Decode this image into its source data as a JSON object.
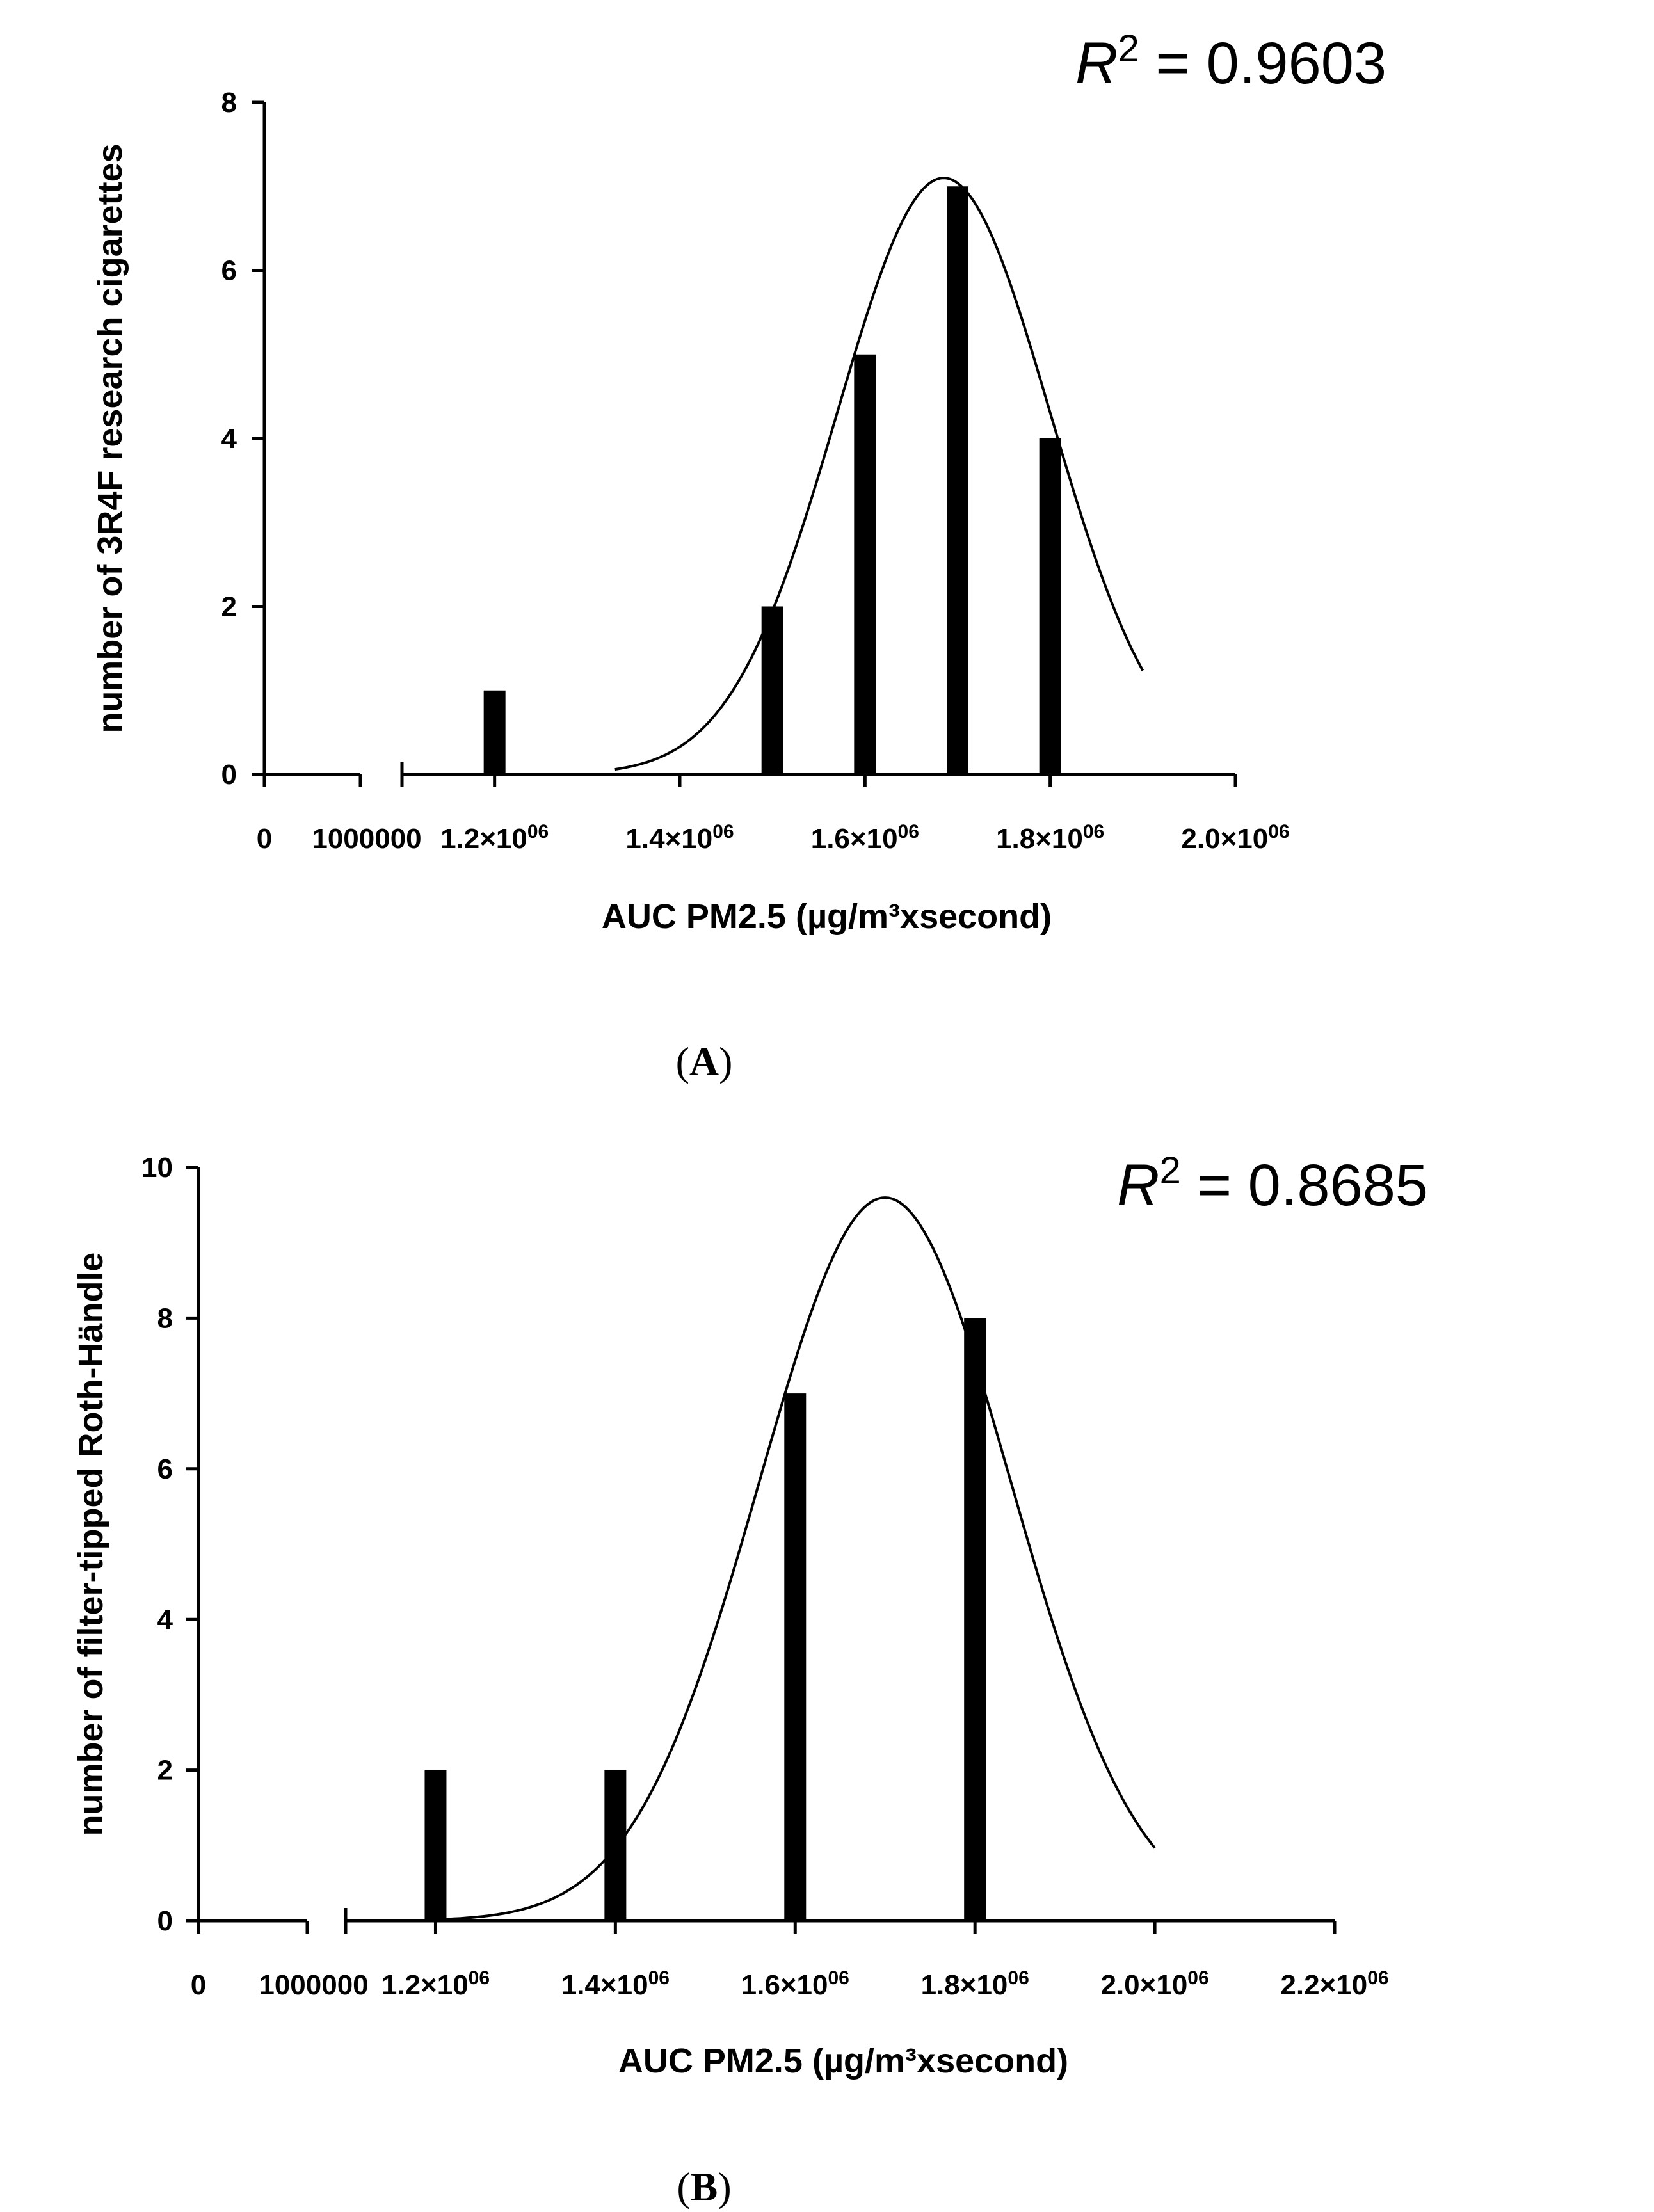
{
  "chart_data": [
    {
      "type": "bar",
      "panel_label": "A",
      "ylabel": "number of 3R4F research cigarettes",
      "xlabel": "AUC PM2.5 (µg/m³xsecond)",
      "r2_label": "R",
      "r2_exp": "2",
      "r2_value": " = 0.9603",
      "ylim": [
        0,
        8
      ],
      "y_ticks": [
        "0",
        "2",
        "4",
        "6",
        "8"
      ],
      "x_break_ticks": [
        "0",
        "1000000"
      ],
      "xlim_main": [
        1100000,
        2000000
      ],
      "x_ticks": [
        {
          "value": 1200000,
          "mantissa": "1.2×10",
          "exp": "06"
        },
        {
          "value": 1400000,
          "mantissa": "1.4×10",
          "exp": "06"
        },
        {
          "value": 1600000,
          "mantissa": "1.6×10",
          "exp": "06"
        },
        {
          "value": 1800000,
          "mantissa": "1.8×10",
          "exp": "06"
        },
        {
          "value": 2000000,
          "mantissa": "2.0×10",
          "exp": "06"
        }
      ],
      "bars": [
        {
          "x": 1200000,
          "y": 1
        },
        {
          "x": 1500000,
          "y": 2
        },
        {
          "x": 1600000,
          "y": 5
        },
        {
          "x": 1700000,
          "y": 7
        },
        {
          "x": 1800000,
          "y": 4
        }
      ],
      "fit": {
        "type": "gaussian",
        "amplitude": 7.1,
        "mean": 1685000,
        "sd": 115000,
        "x_range": [
          1330000,
          1900000
        ]
      }
    },
    {
      "type": "bar",
      "panel_label": "B",
      "ylabel": "number of filter-tipped Roth-Händle",
      "xlabel": "AUC PM2.5 (µg/m³xsecond)",
      "r2_label": "R",
      "r2_exp": "2",
      "r2_value": " = 0.8685",
      "ylim": [
        0,
        10
      ],
      "y_ticks": [
        "0",
        "2",
        "4",
        "6",
        "8",
        "10"
      ],
      "x_break_ticks": [
        "0",
        "1000000"
      ],
      "xlim_main": [
        1100000,
        2200000
      ],
      "x_ticks": [
        {
          "value": 1200000,
          "mantissa": "1.2×10",
          "exp": "06"
        },
        {
          "value": 1400000,
          "mantissa": "1.4×10",
          "exp": "06"
        },
        {
          "value": 1600000,
          "mantissa": "1.6×10",
          "exp": "06"
        },
        {
          "value": 1800000,
          "mantissa": "1.8×10",
          "exp": "06"
        },
        {
          "value": 2000000,
          "mantissa": "2.0×10",
          "exp": "06"
        },
        {
          "value": 2200000,
          "mantissa": "2.2×10",
          "exp": "06"
        }
      ],
      "bars": [
        {
          "x": 1200000,
          "y": 2
        },
        {
          "x": 1400000,
          "y": 2
        },
        {
          "x": 1600000,
          "y": 7
        },
        {
          "x": 1800000,
          "y": 8
        }
      ],
      "fit": {
        "type": "gaussian",
        "amplitude": 9.6,
        "mean": 1700000,
        "sd": 140000,
        "x_range": [
          1200000,
          2000000
        ]
      }
    }
  ]
}
